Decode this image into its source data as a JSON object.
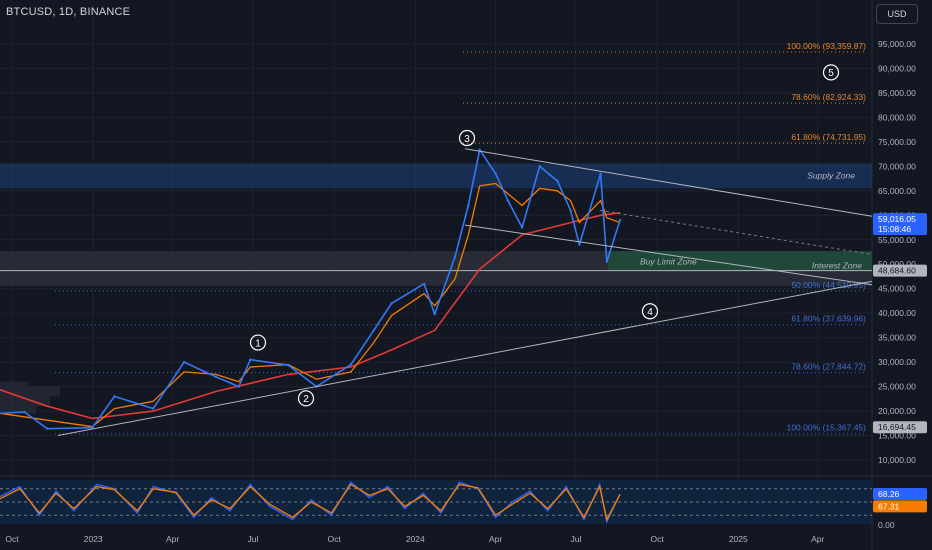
{
  "header": {
    "symbol_title": "BTCUSD, 1D, BINANCE",
    "currency_button": "USD"
  },
  "colors": {
    "background": "#131722",
    "grid": "#1e222d",
    "price_line": "#3179f5",
    "ema_orange": "#f57c00",
    "ma_red": "#e53935",
    "fib_upper": "#e8852c",
    "fib_lower": "#3d6fd6",
    "supply_zone": "#1e3f7a",
    "buy_zone": "#1f4d3a",
    "interest_zone": "#2a2e39",
    "rsi_line_a": "#2962ff",
    "rsi_line_b": "#f57c00",
    "rsi_background": "#0f2744"
  },
  "y_axis": {
    "ticks": [
      "95,000.00",
      "90,000.00",
      "85,000.00",
      "80,000.00",
      "75,000.00",
      "70,000.00",
      "65,000.00",
      "60,000.00",
      "55,000.00",
      "50,000.00",
      "45,000.00",
      "40,000.00",
      "35,000.00",
      "30,000.00",
      "25,000.00",
      "20,000.00",
      "15,000.00",
      "10,000.00"
    ],
    "tick_values": [
      95000,
      90000,
      85000,
      80000,
      75000,
      70000,
      65000,
      60000,
      55000,
      50000,
      45000,
      40000,
      35000,
      30000,
      25000,
      20000,
      15000,
      10000
    ],
    "price_label": "59,016.05",
    "countdown": "15:08:46",
    "interest_label": "48,684.60",
    "low_label": "16,694.45",
    "rsi_ticks": [
      "68.26",
      "67.31",
      "0.00"
    ],
    "rsi_label_a": "68.26",
    "rsi_label_b": "67.31",
    "rsi_zero": "0.00"
  },
  "x_axis": {
    "labels": [
      "Oct",
      "2023",
      "Apr",
      "Jul",
      "Oct",
      "2024",
      "Apr",
      "Jul",
      "Oct",
      "2025",
      "Apr"
    ],
    "dates": [
      "2022-10-01",
      "2023-01-01",
      "2023-04-01",
      "2023-07-01",
      "2023-10-01",
      "2024-01-01",
      "2024-04-01",
      "2024-07-01",
      "2024-10-01",
      "2025-01-01",
      "2025-04-01"
    ]
  },
  "zones": {
    "supply": "Supply Zone",
    "buy_limit": "Buy Limit Zone",
    "interest": "Interest Zone"
  },
  "fib_levels": [
    {
      "label": "100.00% (93,359.87)",
      "value": 93359.87,
      "group": "upper"
    },
    {
      "label": "78.60% (82,924.33)",
      "value": 82924.33,
      "group": "upper"
    },
    {
      "label": "61.80% (74,731.95)",
      "value": 74731.95,
      "group": "upper"
    },
    {
      "label": "50.00% (44,519.95)",
      "value": 44519.95,
      "group": "lower"
    },
    {
      "label": "61.80% (37,639.96)",
      "value": 37639.96,
      "group": "lower"
    },
    {
      "label": "78.60% (27,844.72)",
      "value": 27844.72,
      "group": "lower"
    },
    {
      "label": "100.00% (15,367.45)",
      "value": 15367.45,
      "group": "lower"
    }
  ],
  "wave_labels": [
    "1",
    "2",
    "3",
    "4",
    "5"
  ],
  "chart_data": [
    {
      "type": "line",
      "title": "BTCUSD, 1D, BINANCE",
      "x_axis": "date",
      "ylim": [
        9000,
        99000
      ],
      "series": [
        {
          "x": [
            "2022-09-15",
            "2022-10-15",
            "2022-11-10",
            "2022-12-31",
            "2023-01-25",
            "2023-03-10",
            "2023-04-14",
            "2023-05-20",
            "2023-06-15",
            "2023-06-28",
            "2023-08-10",
            "2023-09-11",
            "2023-10-20",
            "2023-11-15",
            "2023-12-05",
            "2024-01-11",
            "2024-01-23",
            "2024-02-15",
            "2024-03-01",
            "2024-03-14",
            "2024-04-01",
            "2024-04-15",
            "2024-05-01",
            "2024-05-21",
            "2024-06-10",
            "2024-06-25",
            "2024-07-05",
            "2024-07-29",
            "2024-08-05",
            "2024-08-20"
          ],
          "values": [
            19500,
            19800,
            16400,
            16600,
            23000,
            20500,
            30000,
            27000,
            25000,
            30500,
            29400,
            25000,
            29500,
            36500,
            42000,
            46000,
            39800,
            51500,
            62000,
            73400,
            68500,
            63000,
            57500,
            70000,
            67000,
            61000,
            54000,
            68500,
            50500,
            59016
          ]
        },
        {
          "x": [
            "2022-09-15",
            "2022-12-31",
            "2023-01-25",
            "2023-03-10",
            "2023-04-14",
            "2023-05-20",
            "2023-06-15",
            "2023-06-28",
            "2023-08-10",
            "2023-09-11",
            "2023-10-20",
            "2023-11-15",
            "2023-12-05",
            "2024-01-11",
            "2024-01-23",
            "2024-02-15",
            "2024-03-01",
            "2024-03-14",
            "2024-04-01",
            "2024-05-01",
            "2024-05-21",
            "2024-06-10",
            "2024-06-25",
            "2024-07-05",
            "2024-07-29",
            "2024-08-05",
            "2024-08-20"
          ],
          "values": [
            19600,
            16800,
            20500,
            22000,
            28000,
            27500,
            26000,
            29000,
            29500,
            26500,
            28000,
            34000,
            39500,
            44000,
            41500,
            47000,
            56000,
            66000,
            66500,
            62000,
            65500,
            65000,
            63000,
            58500,
            63000,
            59500,
            58500
          ]
        },
        {
          "x": [
            "2022-09-15",
            "2022-11-10",
            "2022-12-31",
            "2023-03-10",
            "2023-05-20",
            "2023-08-10",
            "2023-10-20",
            "2023-12-05",
            "2024-01-23",
            "2024-03-14",
            "2024-05-01",
            "2024-06-25",
            "2024-07-29",
            "2024-08-20"
          ],
          "values": [
            24500,
            21000,
            18500,
            20000,
            24000,
            27500,
            29000,
            32500,
            36500,
            49000,
            56000,
            58500,
            60000,
            60500
          ]
        }
      ]
    },
    {
      "type": "line",
      "x_axis": "date",
      "ylim": [
        0,
        100
      ],
      "series": [
        {
          "x": [
            "2022-09-15",
            "2022-10-10",
            "2022-11-01",
            "2022-11-20",
            "2022-12-10",
            "2023-01-05",
            "2023-01-25",
            "2023-02-20",
            "2023-03-10",
            "2023-04-05",
            "2023-04-25",
            "2023-05-15",
            "2023-06-05",
            "2023-06-28",
            "2023-07-20",
            "2023-08-15",
            "2023-09-05",
            "2023-09-28",
            "2023-10-20",
            "2023-11-10",
            "2023-12-01",
            "2023-12-20",
            "2024-01-10",
            "2024-01-30",
            "2024-02-20",
            "2024-03-12",
            "2024-04-01",
            "2024-04-20",
            "2024-05-10",
            "2024-05-30",
            "2024-06-20",
            "2024-07-10",
            "2024-07-28",
            "2024-08-05",
            "2024-08-20"
          ],
          "values": [
            60,
            85,
            20,
            75,
            30,
            90,
            80,
            25,
            85,
            70,
            15,
            60,
            30,
            90,
            40,
            10,
            55,
            20,
            95,
            60,
            85,
            35,
            70,
            25,
            95,
            80,
            15,
            50,
            75,
            30,
            85,
            10,
            90,
            5,
            68.26
          ]
        },
        {
          "x": [
            "2022-09-15",
            "2022-10-10",
            "2022-11-01",
            "2022-11-20",
            "2022-12-10",
            "2023-01-05",
            "2023-01-25",
            "2023-02-20",
            "2023-03-10",
            "2023-04-05",
            "2023-04-25",
            "2023-05-15",
            "2023-06-05",
            "2023-06-28",
            "2023-07-20",
            "2023-08-15",
            "2023-09-05",
            "2023-09-28",
            "2023-10-20",
            "2023-11-10",
            "2023-12-01",
            "2023-12-20",
            "2024-01-10",
            "2024-01-30",
            "2024-02-20",
            "2024-03-12",
            "2024-04-01",
            "2024-04-20",
            "2024-05-10",
            "2024-05-30",
            "2024-06-20",
            "2024-07-10",
            "2024-07-28",
            "2024-08-05",
            "2024-08-20"
          ],
          "values": [
            55,
            80,
            25,
            70,
            35,
            85,
            78,
            30,
            80,
            72,
            20,
            55,
            35,
            85,
            45,
            15,
            50,
            25,
            90,
            65,
            80,
            40,
            65,
            30,
            90,
            82,
            20,
            45,
            70,
            35,
            80,
            15,
            85,
            10,
            67.31
          ]
        }
      ]
    }
  ]
}
